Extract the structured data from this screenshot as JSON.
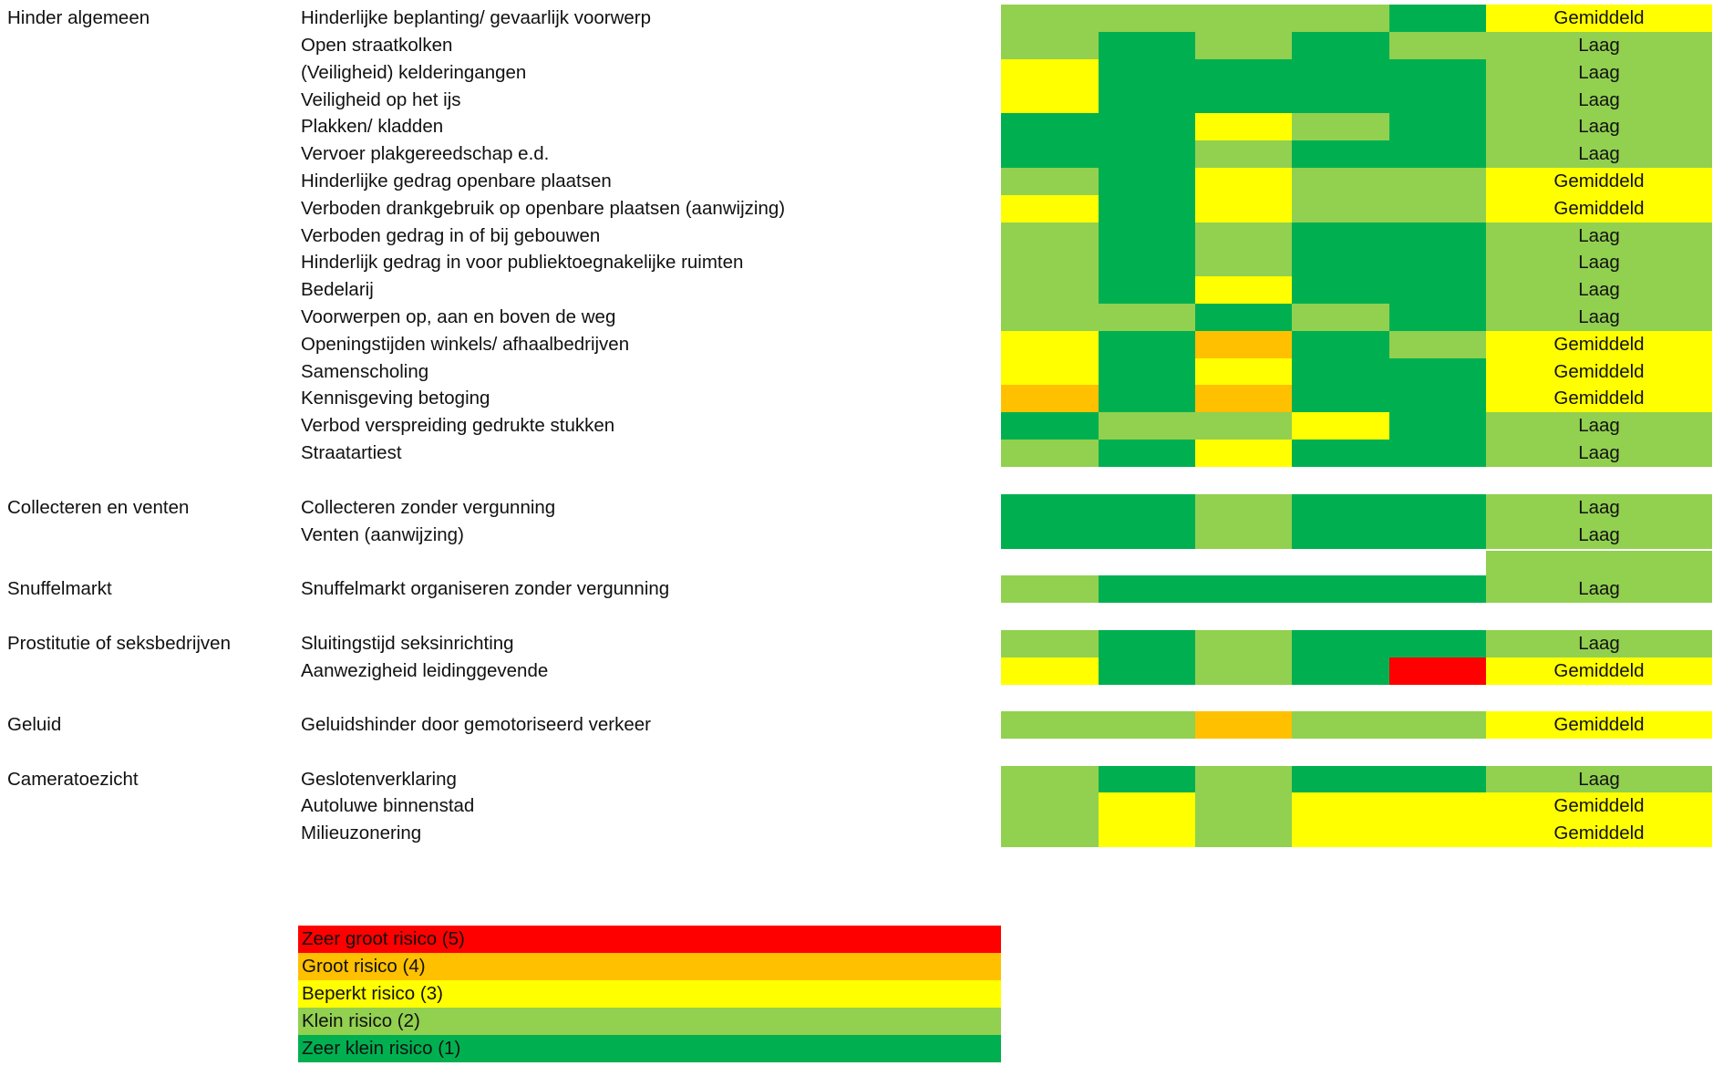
{
  "colors": {
    "1": "#00b050",
    "2": "#92d050",
    "3": "#ffff00",
    "4": "#ffc000",
    "5": "#ff0000"
  },
  "rows": [
    {
      "category": "Hinder algemeen",
      "label": "Hinderlijke beplanting/ gevaarlijk voorwerp",
      "cells": [
        2,
        2,
        2,
        2,
        1
      ],
      "score": "Gemiddeld",
      "level": 3
    },
    {
      "category": "",
      "label": "Open straatkolken",
      "cells": [
        2,
        1,
        2,
        1,
        2
      ],
      "score": "Laag",
      "level": 2
    },
    {
      "category": "",
      "label": "(Veiligheid) kelderingangen",
      "cells": [
        3,
        1,
        1,
        1,
        1
      ],
      "score": "Laag",
      "level": 2
    },
    {
      "category": "",
      "label": "Veiligheid op het ijs",
      "cells": [
        3,
        1,
        1,
        1,
        1
      ],
      "score": "Laag",
      "level": 2
    },
    {
      "category": "",
      "label": "Plakken/ kladden",
      "cells": [
        1,
        1,
        3,
        2,
        1
      ],
      "score": "Laag",
      "level": 2
    },
    {
      "category": "",
      "label": "Vervoer plakgereedschap e.d.",
      "cells": [
        1,
        1,
        2,
        1,
        1
      ],
      "score": "Laag",
      "level": 2
    },
    {
      "category": "",
      "label": "Hinderlijke gedrag openbare plaatsen",
      "cells": [
        2,
        1,
        3,
        2,
        2
      ],
      "score": "Gemiddeld",
      "level": 3
    },
    {
      "category": "",
      "label": "Verboden drankgebruik op openbare plaatsen (aanwijzing)",
      "cells": [
        3,
        1,
        3,
        2,
        2
      ],
      "score": "Gemiddeld",
      "level": 3
    },
    {
      "category": "",
      "label": "Verboden gedrag in of bij gebouwen",
      "cells": [
        2,
        1,
        2,
        1,
        1
      ],
      "score": "Laag",
      "level": 2
    },
    {
      "category": "",
      "label": "Hinderlijk gedrag in voor publiektoegnakelijke ruimten",
      "cells": [
        2,
        1,
        2,
        1,
        1
      ],
      "score": "Laag",
      "level": 2
    },
    {
      "category": "",
      "label": "Bedelarij",
      "cells": [
        2,
        1,
        3,
        1,
        1
      ],
      "score": "Laag",
      "level": 2
    },
    {
      "category": "",
      "label": "Voorwerpen op, aan en boven de weg",
      "cells": [
        2,
        2,
        1,
        2,
        1
      ],
      "score": "Laag",
      "level": 2
    },
    {
      "category": "",
      "label": "Openingstijden winkels/ afhaalbedrijven",
      "cells": [
        3,
        1,
        4,
        1,
        2
      ],
      "score": "Gemiddeld",
      "level": 3
    },
    {
      "category": "",
      "label": "Samenscholing",
      "cells": [
        3,
        1,
        3,
        1,
        1
      ],
      "score": "Gemiddeld",
      "level": 3
    },
    {
      "category": "",
      "label": "Kennisgeving betoging",
      "cells": [
        4,
        1,
        4,
        1,
        1
      ],
      "score": "Gemiddeld",
      "level": 3
    },
    {
      "category": "",
      "label": "Verbod verspreiding gedrukte stukken",
      "cells": [
        1,
        2,
        2,
        3,
        1
      ],
      "score": "Laag",
      "level": 2
    },
    {
      "category": "",
      "label": "Straatartiest",
      "cells": [
        2,
        1,
        3,
        1,
        1
      ],
      "score": "Laag",
      "level": 2
    },
    {
      "category": "Collecteren en venten",
      "label": "Collecteren zonder vergunning",
      "cells": [
        1,
        1,
        2,
        1,
        1
      ],
      "score": "Laag",
      "level": 2
    },
    {
      "category": "",
      "label": "Venten (aanwijzing)",
      "cells": [
        1,
        1,
        2,
        1,
        1
      ],
      "score": "Laag",
      "level": 2
    },
    {
      "category": "Snuffelmarkt",
      "label": "Snuffelmarkt organiseren zonder vergunning",
      "cells": [
        2,
        1,
        1,
        1,
        1
      ],
      "score": "Laag",
      "level": 2
    },
    {
      "category": "Prostitutie of seksbedrijven",
      "label": "Sluitingstijd seksinrichting",
      "cells": [
        2,
        1,
        2,
        1,
        1
      ],
      "score": "Laag",
      "level": 2
    },
    {
      "category": "",
      "label": "Aanwezigheid leidinggevende",
      "cells": [
        3,
        1,
        2,
        1,
        5
      ],
      "score": "Gemiddeld",
      "level": 3
    },
    {
      "category": "Geluid",
      "label": "Geluidshinder door gemotoriseerd verkeer",
      "cells": [
        2,
        2,
        4,
        2,
        2
      ],
      "score": "Gemiddeld",
      "level": 3
    },
    {
      "category": "Cameratoezicht",
      "label": "Geslotenverklaring",
      "cells": [
        2,
        1,
        2,
        1,
        1
      ],
      "score": "Laag",
      "level": 2
    },
    {
      "category": "",
      "label": "Autoluwe binnenstad",
      "cells": [
        2,
        3,
        2,
        3,
        3
      ],
      "score": "Gemiddeld",
      "level": 3
    },
    {
      "category": "",
      "label": "Milieuzonering",
      "cells": [
        2,
        3,
        2,
        3,
        3
      ],
      "score": "Gemiddeld",
      "level": 3
    }
  ],
  "legend": [
    {
      "label": "Zeer groot risico (5)",
      "level": 5
    },
    {
      "label": "Groot risico  (4)",
      "level": 4
    },
    {
      "label": "Beperkt risico (3)",
      "level": 3
    },
    {
      "label": "Klein risico (2)",
      "level": 2
    },
    {
      "label": "Zeer klein risico (1)",
      "level": 1
    }
  ]
}
